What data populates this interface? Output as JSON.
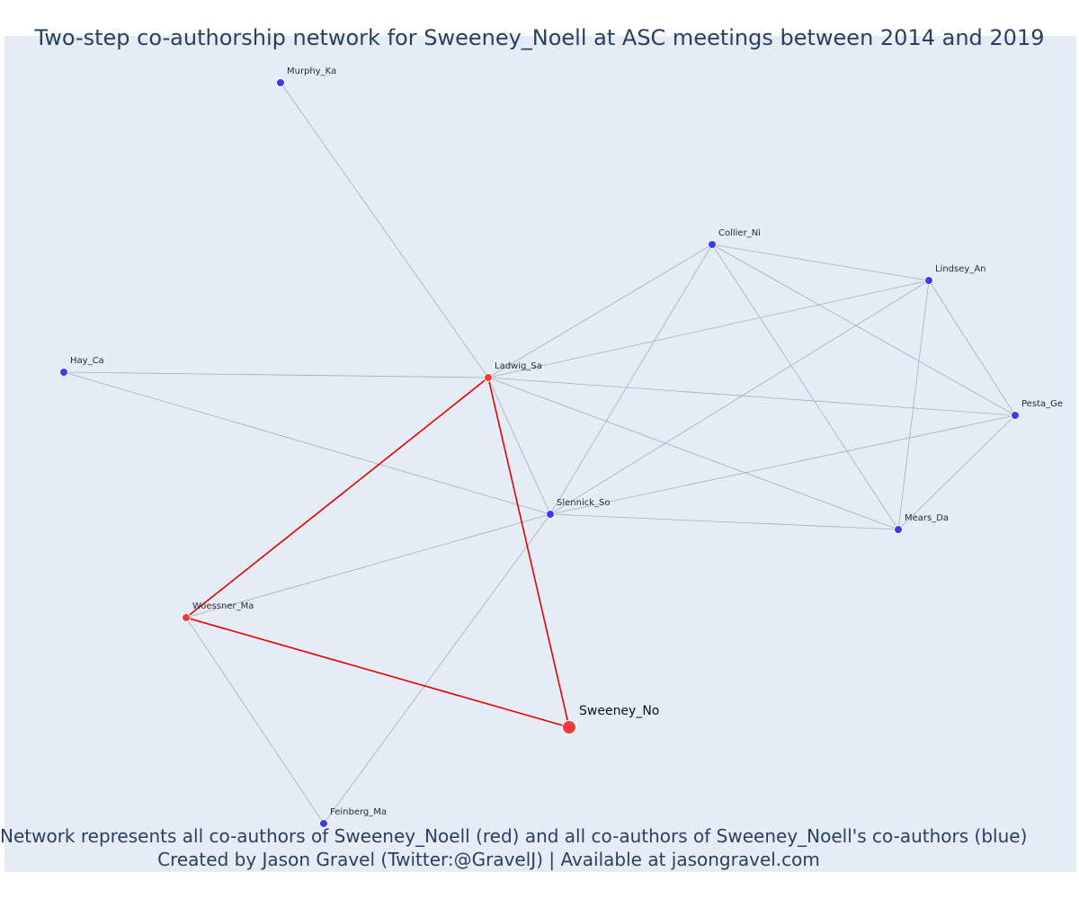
{
  "title": "Two-step co-authorship network for Sweeney_Noell at ASC meetings between 2014 and 2019",
  "caption_line1": "Network represents all co-authors of Sweeney_Noell (red) and all co-authors of Sweeney_Noell's co-authors (blue)",
  "caption_line2": "Created by Jason Gravel (Twitter:@GravelJ) | Available at jasongravel.com",
  "colors": {
    "background": "#e5ecf6",
    "red": "#ef3b3b",
    "blue": "#3b3bef",
    "edge_gray": "#a8aabb",
    "edge_red": "#e40000",
    "text": "#2a3f5f"
  },
  "nodes": [
    {
      "id": "Murphy_Ka",
      "label": "Murphy_Ka",
      "group": "blue"
    },
    {
      "id": "Collier_Ni",
      "label": "Collier_Ni",
      "group": "blue"
    },
    {
      "id": "Lindsey_An",
      "label": "Lindsey_An",
      "group": "blue"
    },
    {
      "id": "Hay_Ca",
      "label": "Hay_Ca",
      "group": "blue"
    },
    {
      "id": "Ladwig_Sa",
      "label": "Ladwig_Sa",
      "group": "red"
    },
    {
      "id": "Pesta_Ge",
      "label": "Pesta_Ge",
      "group": "blue"
    },
    {
      "id": "Slennick_So",
      "label": "Slennick_So",
      "group": "blue"
    },
    {
      "id": "Mears_Da",
      "label": "Mears_Da",
      "group": "blue"
    },
    {
      "id": "Woessner_Ma",
      "label": "Woessner_Ma",
      "group": "red"
    },
    {
      "id": "Sweeney_No",
      "label": "Sweeney_No",
      "group": "focal"
    },
    {
      "id": "Feinberg_Ma",
      "label": "Feinberg_Ma",
      "group": "blue"
    }
  ],
  "edges": [
    [
      "Ladwig_Sa",
      "Murphy_Ka",
      "gray"
    ],
    [
      "Ladwig_Sa",
      "Hay_Ca",
      "gray"
    ],
    [
      "Ladwig_Sa",
      "Collier_Ni",
      "gray"
    ],
    [
      "Ladwig_Sa",
      "Lindsey_An",
      "gray"
    ],
    [
      "Ladwig_Sa",
      "Pesta_Ge",
      "gray"
    ],
    [
      "Ladwig_Sa",
      "Mears_Da",
      "gray"
    ],
    [
      "Ladwig_Sa",
      "Slennick_So",
      "gray"
    ],
    [
      "Hay_Ca",
      "Slennick_So",
      "gray"
    ],
    [
      "Collier_Ni",
      "Lindsey_An",
      "gray"
    ],
    [
      "Collier_Ni",
      "Pesta_Ge",
      "gray"
    ],
    [
      "Collier_Ni",
      "Mears_Da",
      "gray"
    ],
    [
      "Collier_Ni",
      "Slennick_So",
      "gray"
    ],
    [
      "Lindsey_An",
      "Pesta_Ge",
      "gray"
    ],
    [
      "Lindsey_An",
      "Mears_Da",
      "gray"
    ],
    [
      "Lindsey_An",
      "Slennick_So",
      "gray"
    ],
    [
      "Pesta_Ge",
      "Slennick_So",
      "gray"
    ],
    [
      "Pesta_Ge",
      "Mears_Da",
      "gray"
    ],
    [
      "Slennick_So",
      "Mears_Da",
      "gray"
    ],
    [
      "Slennick_So",
      "Woessner_Ma",
      "gray"
    ],
    [
      "Slennick_So",
      "Feinberg_Ma",
      "gray"
    ],
    [
      "Woessner_Ma",
      "Feinberg_Ma",
      "gray"
    ],
    [
      "Ladwig_Sa",
      "Woessner_Ma",
      "red"
    ],
    [
      "Ladwig_Sa",
      "Sweeney_No",
      "red"
    ],
    [
      "Woessner_Ma",
      "Sweeney_No",
      "red"
    ]
  ]
}
